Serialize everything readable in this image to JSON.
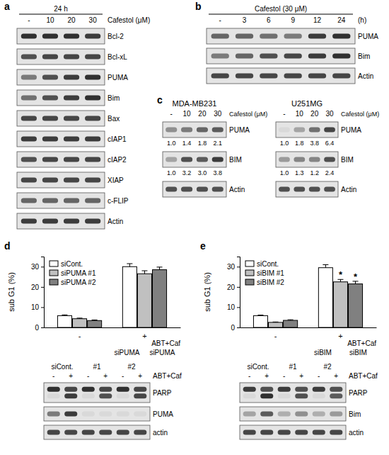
{
  "panels": [
    {
      "letter": "a",
      "blots": [
        {
          "header": "24 h",
          "lanes": [
            "-",
            "10",
            "20",
            "30"
          ],
          "lane_title": "Cafestol (μM)",
          "rows": [
            {
              "label": "Bcl-2",
              "bands": [
                [
                  0.85,
                  0.85,
                  0.85,
                  0.8
                ]
              ]
            },
            {
              "label": "Bcl-xL",
              "bands": [
                [
                  0.7,
                  0.75,
                  0.75,
                  0.75
                ]
              ]
            },
            {
              "label": "PUMA",
              "bands": [
                [
                  0.5,
                  0.7,
                  0.8,
                  0.85
                ]
              ]
            },
            {
              "label": "Bim",
              "bands": [
                [
                  0.55,
                  0.7,
                  0.8,
                  0.85
                ]
              ]
            },
            {
              "label": "Bax",
              "bands": [
                [
                  0.75,
                  0.75,
                  0.75,
                  0.75
                ]
              ]
            },
            {
              "label": "cIAP1",
              "bands": [
                [
                  0.8,
                  0.8,
                  0.8,
                  0.8
                ]
              ]
            },
            {
              "label": "cIAP2",
              "bands": [
                [
                  0.7,
                  0.75,
                  0.75,
                  0.75
                ]
              ]
            },
            {
              "label": "XIAP",
              "bands": [
                [
                  0.75,
                  0.75,
                  0.75,
                  0.75
                ]
              ]
            },
            {
              "label": "c-FLIP",
              "bands": [
                [
                  0.6,
                  0.6,
                  0.6,
                  0.6
                ]
              ]
            },
            {
              "label": "Actin",
              "bands": [
                [
                  0.8,
                  0.8,
                  0.8,
                  0.8
                ]
              ]
            }
          ]
        }
      ]
    },
    {
      "letter": "b",
      "blots": [
        {
          "header": "Cafestol (30 μM)",
          "lanes": [
            "-",
            "3",
            "6",
            "9",
            "12",
            "24"
          ],
          "lane_title": "(h)",
          "rows": [
            {
              "label": "PUMA",
              "bands": [
                [
                  0.6,
                  0.6,
                  0.55,
                  0.5,
                  0.8,
                  0.85
                ]
              ]
            },
            {
              "label": "Bim",
              "bands": [
                [
                  0.5,
                  0.6,
                  0.7,
                  0.75,
                  0.8,
                  0.85
                ]
              ]
            },
            {
              "label": "Actin",
              "bands": [
                [
                  0.75,
                  0.75,
                  0.75,
                  0.75,
                  0.75,
                  0.75
                ]
              ]
            }
          ]
        }
      ]
    },
    {
      "letter": "c",
      "blots": [
        {
          "cell_line": "MDA-MB231",
          "lanes": [
            "-",
            "10",
            "20",
            "30"
          ],
          "lane_title": "Cafestol (μM)",
          "rows": [
            {
              "label": "PUMA",
              "bands": [
                [
                  0.4,
                  0.5,
                  0.6,
                  0.65
                ]
              ],
              "quantification": [
                "1.0",
                "1.4",
                "1.8",
                "2.1"
              ]
            },
            {
              "label": "BIM",
              "bands": [
                [
                  0.3,
                  0.7,
                  0.65,
                  0.8
                ]
              ],
              "quantification": [
                "1.0",
                "3.2",
                "3.0",
                "3.8"
              ]
            },
            {
              "label": "Actin",
              "bands": [
                [
                  0.7,
                  0.7,
                  0.7,
                  0.7
                ]
              ]
            }
          ]
        },
        {
          "cell_line": "U251MG",
          "lanes": [
            "-",
            "10",
            "20",
            "30"
          ],
          "lane_title": "Cafestol (μM)",
          "rows": [
            {
              "label": "PUMA",
              "bands": [
                [
                  0.05,
                  0.3,
                  0.55,
                  0.75
                ]
              ],
              "quantification": [
                "1.0",
                "1.8",
                "3.8",
                "6.4"
              ]
            },
            {
              "label": "BIM",
              "bands": [
                [
                  0.35,
                  0.45,
                  0.45,
                  0.7
                ]
              ],
              "quantification": [
                "1.0",
                "1.3",
                "1.2",
                "2.4"
              ]
            },
            {
              "label": "Actin",
              "bands": [
                [
                  0.7,
                  0.7,
                  0.7,
                  0.7
                ]
              ]
            }
          ]
        }
      ]
    }
  ],
  "chart_data": [
    {
      "type": "bar",
      "letter": "d",
      "ylabel": "sub G1 (%)",
      "xlabel": "ABT+Caf",
      "categories": [
        "-",
        "+"
      ],
      "notes": [
        "siPUMA",
        "siPUMA"
      ],
      "series": [
        {
          "name": "siCont.",
          "color": "#ffffff",
          "values": [
            5.8,
            30
          ],
          "errors": [
            0.4,
            1.5
          ]
        },
        {
          "name": "siPUMA #1",
          "color": "#c0c0c0",
          "values": [
            4.3,
            26.5
          ],
          "errors": [
            0.3,
            1.5
          ]
        },
        {
          "name": "siPUMA #2",
          "color": "#808080",
          "values": [
            3.4,
            28.5
          ],
          "errors": [
            0.3,
            1.3
          ]
        }
      ],
      "ylim": [
        0,
        35
      ],
      "yticks": [
        0,
        10,
        20,
        30
      ],
      "grid": false,
      "legend": "upper left",
      "blot": {
        "groups": [
          "siCont.",
          "#1",
          "#2"
        ],
        "lanes": [
          "-",
          "+",
          "-",
          "+",
          "-",
          "+"
        ],
        "lane_title": "ABT+Caf",
        "rows": [
          {
            "label": "PARP",
            "bands": [
              [
                0.85,
                0.75,
                0.85,
                0.75,
                0.85,
                0.75
              ],
              [
                0.05,
                0.8,
                0.05,
                0.7,
                0.05,
                0.75
              ]
            ]
          },
          {
            "label": "PUMA",
            "bands": [
              [
                0.5,
                0.8,
                0.05,
                0.05,
                0.05,
                0.05
              ]
            ]
          },
          {
            "label": "actin",
            "bands": [
              [
                0.75,
                0.75,
                0.75,
                0.75,
                0.75,
                0.75
              ]
            ]
          }
        ]
      }
    },
    {
      "type": "bar",
      "letter": "e",
      "ylabel": "sub G1 (%)",
      "xlabel": "ABT+Caf",
      "categories": [
        "-",
        "+"
      ],
      "notes": [
        "siBIM",
        "siBIM"
      ],
      "series": [
        {
          "name": "siCont.",
          "color": "#ffffff",
          "values": [
            5.8,
            29.5
          ],
          "errors": [
            0.3,
            1.5
          ]
        },
        {
          "name": "siBIM #1",
          "color": "#c0c0c0",
          "values": [
            2.5,
            22.5
          ],
          "errors": [
            0.2,
            1.2
          ],
          "annotations": [
            null,
            "*"
          ]
        },
        {
          "name": "siBIM #2",
          "color": "#808080",
          "values": [
            3.5,
            21.5
          ],
          "errors": [
            0.3,
            1.3
          ],
          "annotations": [
            null,
            "*"
          ]
        }
      ],
      "ylim": [
        0,
        35
      ],
      "yticks": [
        0,
        10,
        20,
        30
      ],
      "grid": false,
      "legend": "upper left",
      "blot": {
        "groups": [
          "siCont.",
          "#1",
          "#2"
        ],
        "lanes": [
          "-",
          "+",
          "-",
          "+",
          "-",
          "+"
        ],
        "lane_title": "ABT+Caf",
        "rows": [
          {
            "label": "PARP",
            "bands": [
              [
                0.8,
                0.7,
                0.8,
                0.7,
                0.8,
                0.7
              ],
              [
                0.05,
                0.85,
                0.05,
                0.7,
                0.05,
                0.65
              ]
            ]
          },
          {
            "label": "Bim",
            "bands": [
              [
                0.3,
                0.65,
                0.25,
                0.4,
                0.25,
                0.35
              ]
            ]
          },
          {
            "label": "actin",
            "bands": [
              [
                0.75,
                0.75,
                0.75,
                0.75,
                0.75,
                0.75
              ]
            ]
          }
        ]
      }
    }
  ]
}
